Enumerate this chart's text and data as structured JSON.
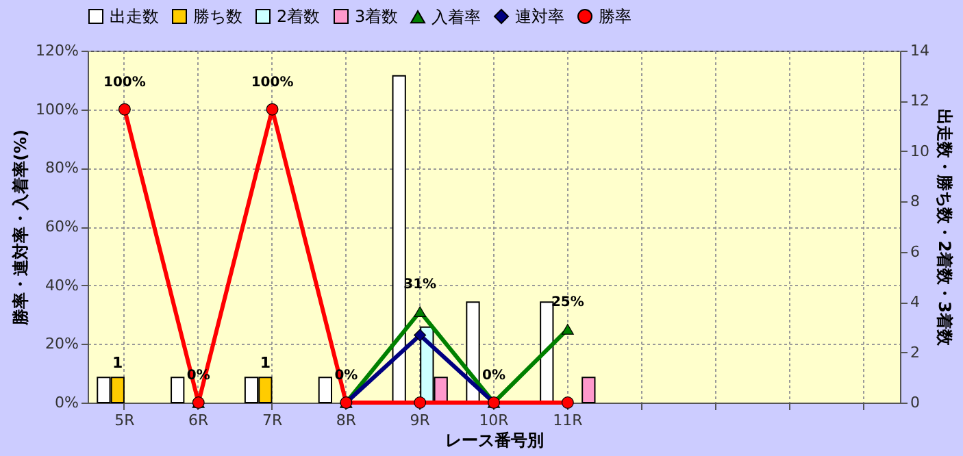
{
  "chart_data": {
    "type": "bar",
    "categories": [
      "5R",
      "6R",
      "7R",
      "8R",
      "9R",
      "10R",
      "11R",
      null,
      null,
      null,
      null
    ],
    "xlabel": "レース番号別",
    "ylabel": "勝率・連対率・入着率(%)",
    "y2label": "出走数・勝ち数・2着数・3着数",
    "series": [
      {
        "name": "出走数",
        "axis": "y2",
        "color": "#ffffff",
        "values": [
          1,
          1,
          1,
          1,
          13,
          4,
          4,
          null,
          null,
          null,
          null
        ]
      },
      {
        "name": "勝ち数",
        "axis": "y2",
        "color": "#ffcc00",
        "values": [
          1,
          0,
          1,
          0,
          0,
          0,
          0,
          null,
          null,
          null,
          null
        ],
        "value_labels": [
          "1",
          null,
          "1",
          null,
          null,
          null,
          null,
          null,
          null,
          null,
          null
        ]
      },
      {
        "name": "2着数",
        "axis": "y2",
        "color": "#ccffff",
        "values": [
          0,
          0,
          0,
          0,
          3,
          0,
          0,
          null,
          null,
          null,
          null
        ]
      },
      {
        "name": "3着数",
        "axis": "y2",
        "color": "#ff99cc",
        "values": [
          0,
          0,
          0,
          0,
          1,
          0,
          1,
          null,
          null,
          null,
          null
        ]
      },
      {
        "name": "入着率",
        "type": "line",
        "marker": "triangle",
        "color": "#008000",
        "values": [
          null,
          0,
          null,
          0,
          31,
          0,
          25,
          null,
          null,
          null,
          null
        ],
        "value_labels": [
          null,
          null,
          null,
          null,
          "31%",
          null,
          "25%",
          null,
          null,
          null,
          null
        ]
      },
      {
        "name": "連対率",
        "type": "line",
        "marker": "diamond",
        "color": "#000080",
        "values": [
          null,
          null,
          null,
          0,
          23,
          0,
          null,
          null,
          null,
          null,
          null
        ]
      },
      {
        "name": "勝率",
        "type": "line",
        "marker": "circle",
        "color": "#ff0000",
        "values": [
          100,
          0,
          100,
          0,
          0,
          0,
          0,
          null,
          null,
          null,
          null
        ],
        "value_labels": [
          "100%",
          "0%",
          "100%",
          "0%",
          null,
          "0%",
          null,
          null,
          null,
          null,
          null
        ]
      }
    ],
    "ylim": [
      0,
      120
    ],
    "yticks": [
      {
        "value": 0,
        "label": "0%"
      },
      {
        "value": 20,
        "label": "20%"
      },
      {
        "value": 40,
        "label": "40%"
      },
      {
        "value": 60,
        "label": "60%"
      },
      {
        "value": 80,
        "label": "80%"
      },
      {
        "value": 100,
        "label": "100%"
      },
      {
        "value": 120,
        "label": "120%"
      }
    ],
    "y2lim": [
      0,
      14
    ],
    "y2ticks": [
      0,
      2,
      4,
      6,
      8,
      10,
      12,
      14
    ],
    "grid": true,
    "legend": "top",
    "line_style": "solid"
  }
}
